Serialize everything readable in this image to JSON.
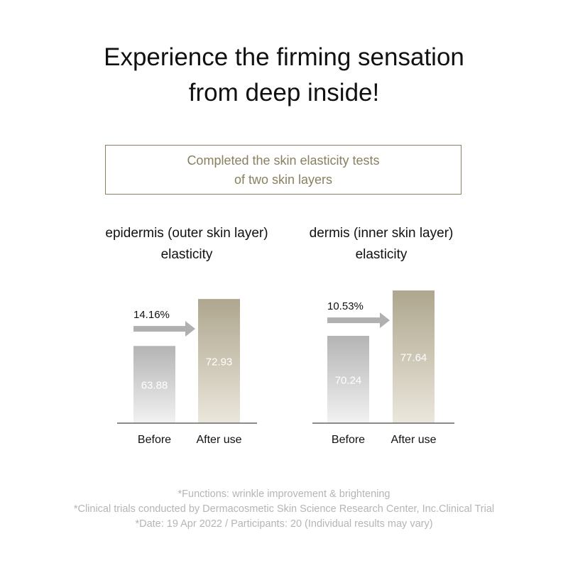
{
  "title": [
    "Experience the firming sensation",
    "from deep inside!"
  ],
  "box_text": [
    "Completed the skin elasticity tests",
    "of two skin layers"
  ],
  "colors": {
    "before": "#b4b4b4",
    "after": "#aea68e",
    "box": "#8a8060",
    "arrow": "#b0b0b0"
  },
  "chart_data": [
    {
      "type": "bar",
      "title": [
        "epidermis (outer skin layer)",
        "elasticity"
      ],
      "categories": [
        "Before",
        "After use"
      ],
      "values": [
        63.88,
        72.93
      ],
      "value_labels": [
        "63.88",
        "72.93"
      ],
      "increase_label": "14.16%",
      "ylim": [
        49,
        75
      ],
      "grid": false
    },
    {
      "type": "bar",
      "title": [
        "dermis (inner skin layer)",
        "elasticity"
      ],
      "categories": [
        "Before",
        "After use"
      ],
      "values": [
        70.24,
        77.64
      ],
      "value_labels": [
        "70.24",
        "77.64"
      ],
      "increase_label": "10.53%",
      "ylim": [
        56,
        78
      ],
      "grid": false
    }
  ],
  "footnotes": [
    "*Functions: wrinkle improvement & brightening",
    "*Clinical trials conducted by Dermacosmetic Skin Science Research Center, Inc.Clinical Trial",
    "*Date: 19 Apr 2022 / Participants: 20 (Individual results may vary)"
  ]
}
